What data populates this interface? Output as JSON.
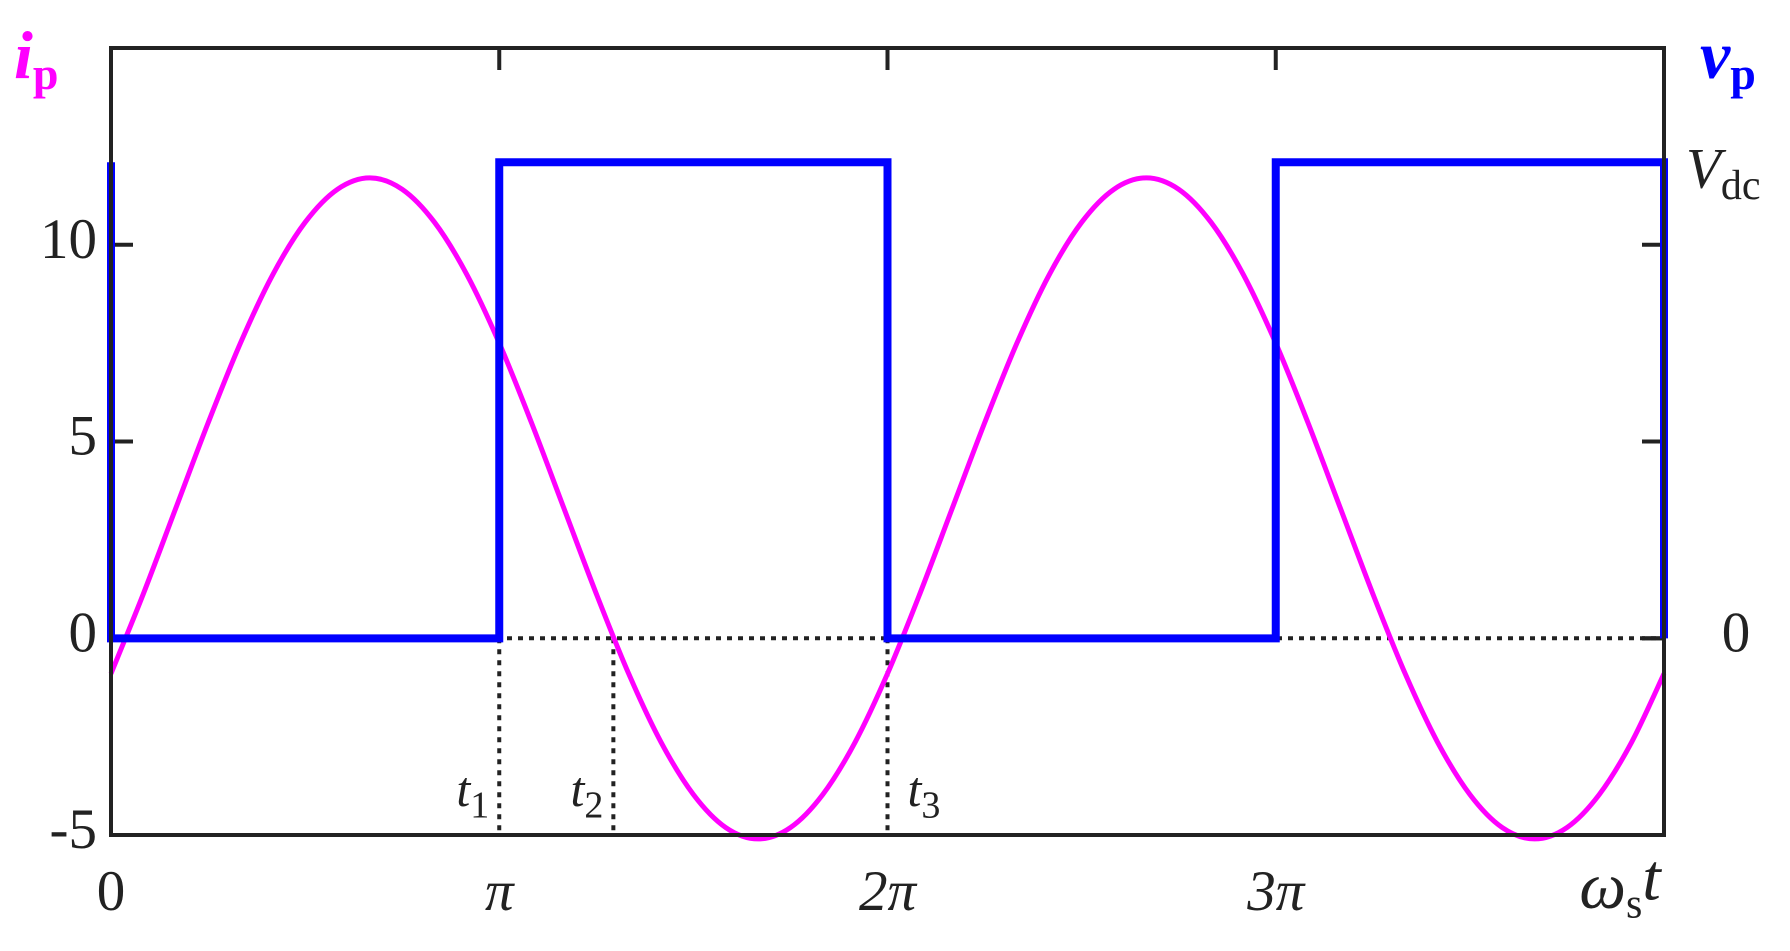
{
  "chart_data": {
    "type": "line",
    "xlabel": "ωst",
    "xlim": [
      0,
      12.5664
    ],
    "xticks": [
      0,
      {
        "value": 3.1416,
        "label": "π"
      },
      {
        "value": 6.2832,
        "label": "2π"
      },
      {
        "value": 9.4248,
        "label": "3π"
      }
    ],
    "ylim": [
      -5,
      15
    ],
    "yticks": [
      -5,
      0,
      5,
      10
    ],
    "y2lim": [
      -0.413,
      1.24
    ],
    "y2ticks": [
      0,
      {
        "value": 1,
        "label": "Vdc"
      }
    ],
    "series": [
      {
        "name": "ip",
        "color": "#ff00ff",
        "x": [
          0,
          0.2618,
          0.5236,
          0.7854,
          1.0472,
          1.309,
          1.5708,
          1.8326,
          2.0944,
          2.3562,
          2.618,
          2.8798,
          3.1416,
          3.4034,
          3.6652,
          3.927,
          4.1888,
          4.4506,
          4.7124,
          4.9742,
          5.236,
          5.4978,
          5.7596,
          6.0214,
          6.2832,
          6.545,
          6.8068,
          7.0686,
          7.3304,
          7.5922,
          7.854,
          8.1158,
          8.3776,
          8.6394,
          8.9012,
          9.163,
          9.4248,
          9.6866,
          9.9484,
          10.2102,
          10.472,
          10.7338,
          10.9956,
          11.2574,
          11.5192,
          11.781,
          12.0428,
          12.3046,
          12.5664
        ],
        "values": [
          -0.9,
          1.13,
          3.3,
          5.47,
          7.5,
          9.24,
          10.57,
          11.41,
          11.7,
          11.41,
          10.57,
          9.24,
          7.5,
          5.47,
          3.3,
          1.13,
          -0.9,
          -2.64,
          -3.97,
          -4.81,
          -5.1,
          -4.81,
          -3.97,
          -2.64,
          -0.9,
          1.13,
          3.3,
          5.47,
          7.5,
          9.24,
          10.57,
          11.41,
          11.7,
          11.41,
          10.57,
          9.24,
          7.5,
          5.47,
          3.3,
          1.13,
          -0.9,
          -2.64,
          -3.97,
          -4.81,
          -5.1,
          -4.81,
          -3.97,
          -2.64,
          -0.9
        ]
      },
      {
        "name": "vp",
        "color": "#0000ff",
        "axis": "y2",
        "x": [
          0,
          0,
          3.1416,
          3.1416,
          6.2832,
          6.2832,
          9.4248,
          9.4248,
          12.5664,
          12.5664
        ],
        "values": [
          1,
          0,
          0,
          1,
          1,
          0,
          0,
          1,
          1,
          0
        ]
      }
    ],
    "markers": [
      {
        "label": "t1",
        "x": 3.1416
      },
      {
        "label": "t2",
        "x": 4.065
      },
      {
        "label": "t3",
        "x": 6.2832
      }
    ]
  }
}
